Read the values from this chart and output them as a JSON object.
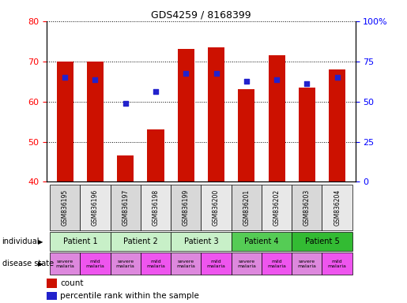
{
  "title": "GDS4259 / 8168399",
  "samples": [
    "GSM836195",
    "GSM836196",
    "GSM836197",
    "GSM836198",
    "GSM836199",
    "GSM836200",
    "GSM836201",
    "GSM836202",
    "GSM836203",
    "GSM836204"
  ],
  "count_values": [
    70,
    70,
    46.5,
    53,
    73,
    73.5,
    63,
    71.5,
    63.5,
    68
  ],
  "percentile_values": [
    66,
    65.5,
    59.5,
    62.5,
    67,
    67,
    65,
    65.5,
    64.5,
    66
  ],
  "ylim": [
    40,
    80
  ],
  "yticks": [
    40,
    50,
    60,
    70,
    80
  ],
  "y2lim": [
    0,
    100
  ],
  "y2ticks": [
    0,
    25,
    50,
    75,
    100
  ],
  "y2ticklabels": [
    "0",
    "25",
    "50",
    "75",
    "100%"
  ],
  "bar_color": "#cc1100",
  "dot_color": "#2222cc",
  "patients": [
    {
      "label": "Patient 1",
      "start": 0,
      "end": 2,
      "color": "#c8f0c8"
    },
    {
      "label": "Patient 2",
      "start": 2,
      "end": 4,
      "color": "#c8f0c8"
    },
    {
      "label": "Patient 3",
      "start": 4,
      "end": 6,
      "color": "#c8f0c8"
    },
    {
      "label": "Patient 4",
      "start": 6,
      "end": 8,
      "color": "#55cc55"
    },
    {
      "label": "Patient 5",
      "start": 8,
      "end": 10,
      "color": "#33bb33"
    }
  ],
  "disease_states": [
    {
      "label": "severe\nmalaria",
      "color": "#dd88dd"
    },
    {
      "label": "mild\nmalaria",
      "color": "#ee55ee"
    },
    {
      "label": "severe\nmalaria",
      "color": "#dd88dd"
    },
    {
      "label": "mild\nmalaria",
      "color": "#ee55ee"
    },
    {
      "label": "severe\nmalaria",
      "color": "#dd88dd"
    },
    {
      "label": "mild\nmalaria",
      "color": "#ee55ee"
    },
    {
      "label": "severe\nmalaria",
      "color": "#dd88dd"
    },
    {
      "label": "mild\nmalaria",
      "color": "#ee55ee"
    },
    {
      "label": "severe\nmalaria",
      "color": "#dd88dd"
    },
    {
      "label": "mild\nmalaria",
      "color": "#ee55ee"
    }
  ],
  "row_labels": [
    "individual",
    "disease state"
  ],
  "legend_count_label": "count",
  "legend_pct_label": "percentile rank within the sample",
  "bar_width": 0.55,
  "sample_bg_colors": [
    "#d8d8d8",
    "#e8e8e8"
  ]
}
